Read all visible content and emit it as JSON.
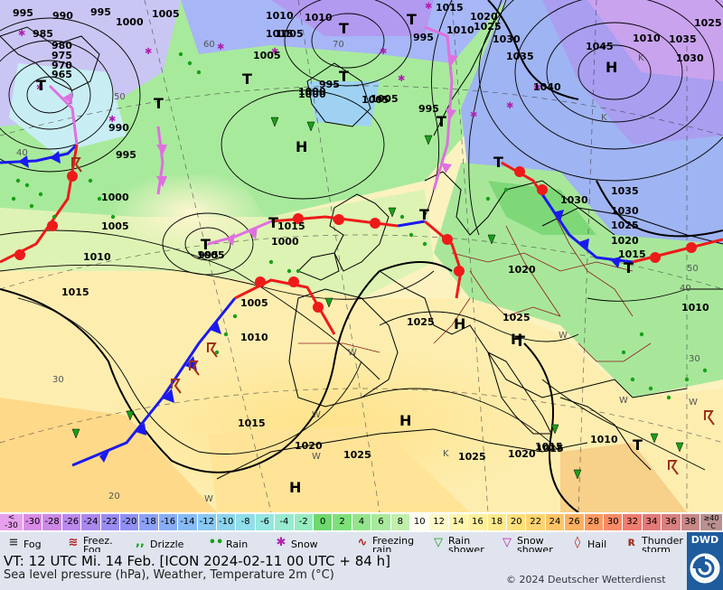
{
  "map": {
    "isobar_labels": [
      {
        "text": "995"
      },
      {
        "text": "990"
      },
      {
        "text": "995"
      },
      {
        "text": "1000"
      },
      {
        "text": "1005"
      },
      {
        "text": "985"
      },
      {
        "text": "980"
      },
      {
        "text": "975"
      },
      {
        "text": "970"
      },
      {
        "text": "965"
      },
      {
        "text": "990"
      },
      {
        "text": "995"
      },
      {
        "text": "1000"
      },
      {
        "text": "1005"
      },
      {
        "text": "1010"
      },
      {
        "text": "1015"
      },
      {
        "text": "1005"
      },
      {
        "text": "995"
      },
      {
        "text": "1000"
      },
      {
        "text": "1005"
      },
      {
        "text": "995"
      },
      {
        "text": "1010"
      },
      {
        "text": "1015"
      },
      {
        "text": "1010"
      },
      {
        "text": "1005"
      },
      {
        "text": "1015"
      },
      {
        "text": "1020"
      },
      {
        "text": "1025"
      },
      {
        "text": "1030"
      },
      {
        "text": "1035"
      },
      {
        "text": "1040"
      },
      {
        "text": "1045"
      },
      {
        "text": "1035"
      },
      {
        "text": "1030"
      },
      {
        "text": "1025"
      },
      {
        "text": "1035"
      },
      {
        "text": "1030"
      },
      {
        "text": "1025"
      },
      {
        "text": "1020"
      },
      {
        "text": "1015"
      },
      {
        "text": "1025"
      },
      {
        "text": "1025"
      },
      {
        "text": "1010"
      },
      {
        "text": "1010"
      },
      {
        "text": "1015"
      },
      {
        "text": "1020"
      },
      {
        "text": "1025"
      },
      {
        "text": "1025"
      },
      {
        "text": "1020"
      },
      {
        "text": "1015"
      },
      {
        "text": "1010"
      },
      {
        "text": "1005"
      },
      {
        "text": "1000"
      },
      {
        "text": "995"
      },
      {
        "text": "995"
      },
      {
        "text": "1000"
      },
      {
        "text": "1015"
      },
      {
        "text": "1020"
      },
      {
        "text": "1030"
      },
      {
        "text": "1005"
      },
      {
        "text": "1010"
      },
      {
        "text": "1015"
      },
      {
        "text": "1005"
      },
      {
        "text": "1010"
      }
    ],
    "pressure_centers": [
      {
        "type": "T"
      },
      {
        "type": "T"
      },
      {
        "type": "T"
      },
      {
        "type": "T"
      },
      {
        "type": "T"
      },
      {
        "type": "T"
      },
      {
        "type": "T"
      },
      {
        "type": "T"
      },
      {
        "type": "T"
      },
      {
        "type": "T"
      },
      {
        "type": "T"
      },
      {
        "type": "T"
      },
      {
        "type": "T"
      },
      {
        "type": "T"
      },
      {
        "type": "H"
      },
      {
        "type": "H"
      },
      {
        "type": "H"
      },
      {
        "type": "H"
      },
      {
        "type": "H"
      },
      {
        "type": "H"
      }
    ],
    "temp_labels": [
      {
        "text": "60"
      },
      {
        "text": "50"
      },
      {
        "text": "40"
      },
      {
        "text": "30"
      },
      {
        "text": "20"
      },
      {
        "text": "70"
      },
      {
        "text": "W"
      },
      {
        "text": "W"
      },
      {
        "text": "W"
      },
      {
        "text": "W"
      },
      {
        "text": "W"
      },
      {
        "text": "K"
      },
      {
        "text": "K"
      },
      {
        "text": "W"
      },
      {
        "text": "K"
      },
      {
        "text": "W"
      },
      {
        "text": "40"
      },
      {
        "text": "50"
      },
      {
        "text": "30"
      }
    ]
  },
  "colorbar": {
    "unit_label": "°C",
    "low_label": "< -30",
    "high_label": "≥40",
    "cells": [
      {
        "label": "-30",
        "color": "#d98ce6"
      },
      {
        "label": "-28",
        "color": "#cc88e6"
      },
      {
        "label": "-26",
        "color": "#bb88ee"
      },
      {
        "label": "-24",
        "color": "#aa88ee"
      },
      {
        "label": "-22",
        "color": "#9a8cf0"
      },
      {
        "label": "-20",
        "color": "#8f8ff5"
      },
      {
        "label": "-18",
        "color": "#8da1f7"
      },
      {
        "label": "-16",
        "color": "#88adf6"
      },
      {
        "label": "-14",
        "color": "#86bbf6"
      },
      {
        "label": "-12",
        "color": "#88c8f2"
      },
      {
        "label": "-10",
        "color": "#8cd4ee"
      },
      {
        "label": "-8",
        "color": "#90deea"
      },
      {
        "label": "-6",
        "color": "#94e6e0"
      },
      {
        "label": "-4",
        "color": "#96ebd0"
      },
      {
        "label": "-2",
        "color": "#96ecbf"
      },
      {
        "label": "0",
        "color": "#6ed86e"
      },
      {
        "label": "2",
        "color": "#7ee07a"
      },
      {
        "label": "4",
        "color": "#93e58c"
      },
      {
        "label": "6",
        "color": "#a8ea9c"
      },
      {
        "label": "8",
        "color": "#c0efad"
      },
      {
        "label": "10",
        "color": "#fffff0"
      },
      {
        "label": "12",
        "color": "#fff8c8"
      },
      {
        "label": "14",
        "color": "#fff4b0"
      },
      {
        "label": "16",
        "color": "#fff09c"
      },
      {
        "label": "18",
        "color": "#ffe98a"
      },
      {
        "label": "20",
        "color": "#ffe07a"
      },
      {
        "label": "22",
        "color": "#ffd470"
      },
      {
        "label": "24",
        "color": "#ffc466"
      },
      {
        "label": "26",
        "color": "#ffb060"
      },
      {
        "label": "28",
        "color": "#ff9a60"
      },
      {
        "label": "30",
        "color": "#f88a66"
      },
      {
        "label": "32",
        "color": "#f07c70"
      },
      {
        "label": "34",
        "color": "#e47878"
      },
      {
        "label": "36",
        "color": "#d88080"
      },
      {
        "label": "38",
        "color": "#c88888"
      }
    ]
  },
  "legend": {
    "items": [
      {
        "label": "Fog",
        "icon": "fog-icon"
      },
      {
        "label": "Freez.\nFog",
        "icon": "freezing-fog-icon"
      },
      {
        "label": "Drizzle",
        "icon": "drizzle-icon"
      },
      {
        "label": "Rain",
        "icon": "rain-icon"
      },
      {
        "label": "Snow",
        "icon": "snow-icon"
      },
      {
        "label": "Freezing\nrain",
        "icon": "freezing-rain-icon"
      },
      {
        "label": "Rain\nshower",
        "icon": "rain-shower-icon"
      },
      {
        "label": "Snow\nshower",
        "icon": "snow-shower-icon"
      },
      {
        "label": "Hail",
        "icon": "hail-icon"
      },
      {
        "label": "Thunder\nstorm",
        "icon": "thunderstorm-icon"
      }
    ]
  },
  "info": {
    "valid_time": "VT: 12 UTC Mi.   14 Feb. [ICON 2024-02-11  00 UTC + 84 h]",
    "description": "Sea level pressure (hPa), Weather, Temperature 2m (°C)",
    "copyright": "© 2024 Deutscher Wetterdienst"
  },
  "logo": {
    "text": "DWD"
  },
  "colors": {
    "cold_front": "#1a1aee",
    "warm_front": "#ee1a1a",
    "occlusion": "#e070e0",
    "isobar": "#000000",
    "coast": "#000000",
    "border": "#8b1a1a"
  }
}
